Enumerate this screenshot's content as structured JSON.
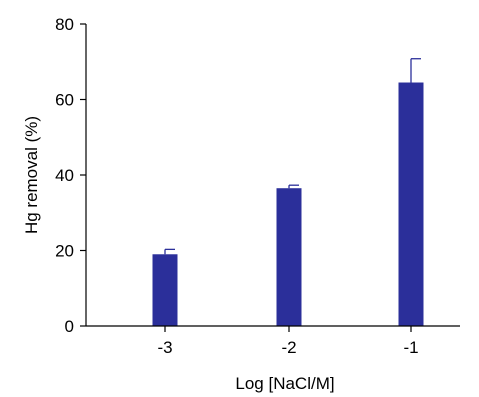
{
  "chart_data": {
    "type": "bar",
    "categories": [
      "-3",
      "-2",
      "-1"
    ],
    "values": [
      19,
      36.5,
      64.5
    ],
    "error_plus": [
      1.3,
      0.8,
      6.3
    ],
    "ylim": [
      0,
      80
    ],
    "yticks": [
      "0",
      "20",
      "40",
      "60",
      "80"
    ],
    "xlabel": "Log [NaCl/M]",
    "ylabel": "Hg removal (%)",
    "title": "",
    "grid": false,
    "bar_color": "#2b2f9a"
  }
}
